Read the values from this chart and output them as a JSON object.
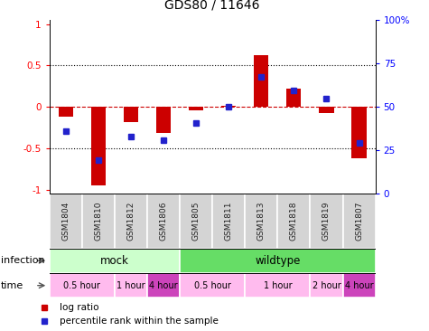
{
  "title": "GDS80 / 11646",
  "samples": [
    "GSM1804",
    "GSM1810",
    "GSM1812",
    "GSM1806",
    "GSM1805",
    "GSM1811",
    "GSM1813",
    "GSM1818",
    "GSM1819",
    "GSM1807"
  ],
  "log_ratio": [
    -0.12,
    -0.95,
    -0.18,
    -0.32,
    -0.04,
    0.01,
    0.62,
    0.22,
    -0.08,
    -0.62
  ],
  "percentile": [
    35,
    18,
    32,
    30,
    40,
    50,
    68,
    60,
    55,
    28
  ],
  "ylim": [
    -1.05,
    1.05
  ],
  "left_yticks": [
    -1,
    -0.5,
    0,
    0.5,
    1
  ],
  "left_yticklabels": [
    "-1",
    "-0.5",
    "0",
    "0.5",
    "1"
  ],
  "right_yticks": [
    0,
    25,
    50,
    75,
    100
  ],
  "right_yticklabels": [
    "0",
    "25",
    "50",
    "75",
    "100%"
  ],
  "bar_color": "#cc0000",
  "dot_color": "#2222cc",
  "zero_line_color": "#cc0000",
  "grid_color": "#000000",
  "infection_row": [
    {
      "label": "mock",
      "start": 0,
      "end": 4,
      "color": "#ccffcc"
    },
    {
      "label": "wildtype",
      "start": 4,
      "end": 10,
      "color": "#66dd66"
    }
  ],
  "time_row": [
    {
      "label": "0.5 hour",
      "start": 0,
      "end": 2,
      "color": "#ffbbee"
    },
    {
      "label": "1 hour",
      "start": 2,
      "end": 3,
      "color": "#ffbbee"
    },
    {
      "label": "4 hour",
      "start": 3,
      "end": 4,
      "color": "#cc44bb"
    },
    {
      "label": "0.5 hour",
      "start": 4,
      "end": 6,
      "color": "#ffbbee"
    },
    {
      "label": "1 hour",
      "start": 6,
      "end": 8,
      "color": "#ffbbee"
    },
    {
      "label": "2 hour",
      "start": 8,
      "end": 9,
      "color": "#ffbbee"
    },
    {
      "label": "4 hour",
      "start": 9,
      "end": 10,
      "color": "#cc44bb"
    }
  ],
  "legend_items": [
    {
      "label": "log ratio",
      "color": "#cc0000"
    },
    {
      "label": "percentile rank within the sample",
      "color": "#2222cc"
    }
  ]
}
